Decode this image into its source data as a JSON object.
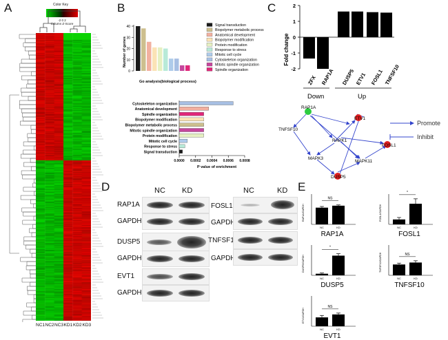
{
  "panels": {
    "a": "A",
    "b": "B",
    "c": "C",
    "d": "D",
    "e": "E"
  },
  "heatmap": {
    "legend_title": "Color Key",
    "legend_scale": "-2 0 2\nColumn Z-Score",
    "columns": [
      "NC1",
      "NC2",
      "NC3",
      "KD1",
      "KD2",
      "KD3"
    ]
  },
  "go_bar": {
    "ylabel": "Number of genes",
    "xlabel": "Go analysis(biological process)",
    "yticks": [
      "0",
      "10",
      "20",
      "30",
      "40"
    ],
    "categories": [
      "Signal transduction",
      "Biopolymer metabolic process",
      "Anatomical development",
      "Biopolymer modification",
      "Protein modification",
      "Response to stress",
      "Mitotic cell cycle",
      "Cytoskeleton organization",
      "Mitotic spindle organization",
      "Spindle organization"
    ],
    "values": [
      40,
      38,
      26,
      21,
      21,
      20,
      11,
      11,
      5,
      5
    ],
    "colors": [
      "#1a1a1a",
      "#cdbf8e",
      "#f2b0a0",
      "#fbe3b6",
      "#e6f0c2",
      "#b8ead8",
      "#aecbea",
      "#a7bfe3",
      "#c5469c",
      "#e0287a"
    ]
  },
  "go_pvalue": {
    "xlabel": "P value of enrichment",
    "xticks": [
      "0.0000",
      "0.0002",
      "0.0004",
      "0.0006",
      "0.0008"
    ],
    "categories": [
      "Cytoskeleton organization",
      "Anatomical development",
      "Spindle organization",
      "Biopolymer modification",
      "Biopolymer metabolic process",
      "Mitotic spindle organization",
      "Protein modification",
      "Mitotic cell cycle",
      "Response to stress",
      "Signal transduction"
    ],
    "values": [
      0.00066,
      0.00036,
      0.0003,
      0.0003,
      0.0003,
      0.0003,
      0.0003,
      0.0001,
      7e-05,
      4e-05
    ],
    "colors": [
      "#a7bfe3",
      "#f2b0a0",
      "#e0287a",
      "#fbe3b6",
      "#cdbf8e",
      "#c5469c",
      "#e6f0c2",
      "#aecbea",
      "#b8ead8",
      "#1a1a1a"
    ]
  },
  "chart_data": [
    {
      "type": "bar",
      "title": "",
      "ylabel": "Fold change",
      "categories": [
        "ZFX",
        "RAP1A",
        "DUSP5",
        "ETV1",
        "FOSL1",
        "TNFSF10"
      ],
      "values": [
        -1.35,
        -2.0,
        1.62,
        1.62,
        1.58,
        1.55
      ],
      "groups": [
        "Down",
        "Up"
      ],
      "yticks": [
        "-2",
        "-1",
        "0",
        "1",
        "2"
      ],
      "ylim": [
        -2,
        2
      ]
    }
  ],
  "network": {
    "nodes": [
      "RAP1A",
      "TNFSF10",
      "ETV1",
      "RAPK1",
      "MAPK3",
      "MAPK11",
      "DUSP5",
      "FOSL1"
    ],
    "legend_promote": "Promote",
    "legend_inhibit": "Inhibit"
  },
  "blots": {
    "col_nc": "NC",
    "col_kd": "KD",
    "left_rows": [
      "RAP1A",
      "GAPDH",
      "DUSP5",
      "GAPDH",
      "EVT1",
      "GAPDH"
    ],
    "right_rows": [
      "FOSL1",
      "GAPDH",
      "TNFSF10",
      "GAPDH"
    ]
  },
  "quant": [
    {
      "title": "RAP1A",
      "ylabel": "RAP1A/GAPDH",
      "sig": "NS",
      "nc": 0.85,
      "kd": 0.95,
      "nc_err": 0.06,
      "kd_err": 0.04
    },
    {
      "title": "FOSL1",
      "ylabel": "FOSL1/GAPDH",
      "sig": "*",
      "nc": 0.25,
      "kd": 1.05,
      "nc_err": 0.1,
      "kd_err": 0.25
    },
    {
      "title": "DUSP5",
      "ylabel": "DUSP5/GAPDH",
      "sig": "*",
      "nc": 0.08,
      "kd": 1.0,
      "nc_err": 0.04,
      "kd_err": 0.1
    },
    {
      "title": "TNFSF10",
      "ylabel": "TNFSF10/GAPDH",
      "sig": "NS",
      "nc": 0.55,
      "kd": 0.65,
      "nc_err": 0.07,
      "kd_err": 0.09
    },
    {
      "title": "EVT1",
      "ylabel": "ETV1/GAPDH",
      "sig": "NS",
      "nc": 0.45,
      "kd": 0.6,
      "nc_err": 0.1,
      "kd_err": 0.07
    }
  ],
  "quant_xlabels": {
    "nc": "NC",
    "kd": "KD"
  }
}
